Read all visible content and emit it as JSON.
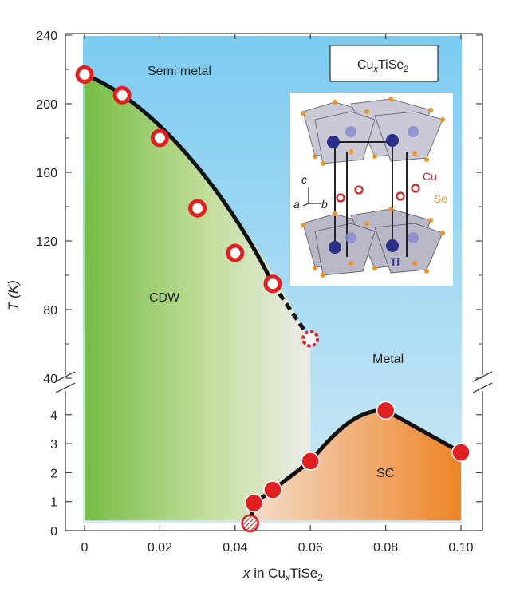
{
  "chart_data": {
    "type": "scatter",
    "xlabel_italic": "x",
    "xlabel_text": " in Cu",
    "xlabel_sub": "x",
    "xlabel_tail": "TiSe",
    "xlabel_sub2": "2",
    "ylabel": "T (K)",
    "x_ticks": [
      "0",
      "0.02",
      "0.04",
      "0.06",
      "0.08",
      "0.10"
    ],
    "x_tick_values": [
      0,
      0.02,
      0.04,
      0.06,
      0.08,
      0.1
    ],
    "y_ticks_upper": [
      "40",
      "80",
      "120",
      "160",
      "200",
      "240"
    ],
    "y_tick_values_upper": [
      40,
      80,
      120,
      160,
      200,
      240
    ],
    "y_ticks_lower": [
      "0",
      "1",
      "2",
      "3",
      "4"
    ],
    "y_tick_values_lower": [
      0,
      1,
      2,
      3,
      4
    ],
    "xlim": [
      -0.005,
      0.1
    ],
    "ylim_upper": [
      40,
      240
    ],
    "ylim_lower": [
      0,
      4.8
    ],
    "axis_break": true,
    "regions": {
      "semimetal": "Semi metal",
      "cdw": "CDW",
      "metal": "Metal",
      "sc": "SC"
    },
    "compound_label": {
      "main": "Cu",
      "sub": "x",
      "mid": "TiSe",
      "sub2": "2"
    },
    "inset_labels": {
      "cu": "Cu",
      "se": "Se",
      "ti": "Ti",
      "a": "a",
      "b": "b",
      "c": "c"
    },
    "series": [
      {
        "marker": "open-circle",
        "x": [
          0,
          0.01,
          0.02,
          0.03,
          0.04,
          0.05
        ],
        "y": [
          217,
          205,
          180,
          139,
          113,
          95
        ]
      },
      {
        "marker": "dashed-open-circle",
        "x": [
          0.06
        ],
        "y": [
          63
        ]
      },
      {
        "marker": "filled-circle",
        "x": [
          0.045,
          0.05,
          0.06,
          0.08,
          0.1
        ],
        "y": [
          0.95,
          1.4,
          2.4,
          4.15,
          2.7
        ]
      },
      {
        "marker": "hatched-circle",
        "x": [
          0.044
        ],
        "y": [
          0.25
        ]
      }
    ],
    "colors": {
      "cdw_green": "#7bbf48",
      "sky_blue": "#8ed0f0",
      "sc_orange": "#ef8a2a",
      "marker_red": "#e02020"
    }
  }
}
